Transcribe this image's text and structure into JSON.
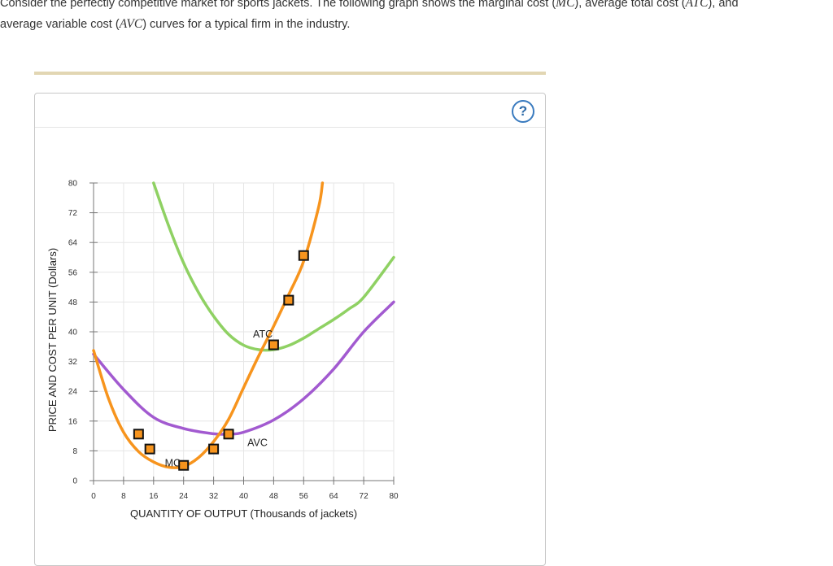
{
  "intro": {
    "line1_a": "Consider the perfectly competitive market for sports jackets. The following graph shows the marginal cost (",
    "mc_abbr": "MC",
    "line1_b": "), average total cost (",
    "atc_abbr": "ATC",
    "line1_c": "), and",
    "line2_a": "average variable cost (",
    "avc_abbr": "AVC",
    "line2_b": ") curves for a typical firm in the industry."
  },
  "help_icon": {
    "glyph": "?",
    "name": "help-icon"
  },
  "colors": {
    "mc": "#f7941d",
    "atc": "#8fd163",
    "avc": "#a25ad0",
    "marker_fill": "#f7941d",
    "marker_stroke": "#111111",
    "grid": "#e6e6e6",
    "divider": "#e2d6b3"
  },
  "chart_data": {
    "type": "line",
    "xlabel": "QUANTITY OF OUTPUT (Thousands of jackets)",
    "ylabel": "PRICE AND COST PER UNIT (Dollars)",
    "xlim": [
      0,
      80
    ],
    "ylim": [
      0,
      80
    ],
    "x_ticks": [
      0,
      8,
      16,
      24,
      32,
      40,
      48,
      56,
      64,
      72,
      80
    ],
    "y_ticks": [
      0,
      8,
      16,
      24,
      32,
      40,
      48,
      56,
      64,
      72,
      80
    ],
    "grid": true,
    "series": [
      {
        "name": "MC",
        "color": "#f7941d",
        "x": [
          0,
          4,
          8,
          12,
          16,
          20,
          24,
          28,
          32,
          36,
          40,
          44,
          48,
          52,
          56,
          60,
          61
        ],
        "y": [
          35,
          22,
          13,
          7.8,
          5,
          3.6,
          3.8,
          6.2,
          10.5,
          16.5,
          25,
          33.5,
          41.5,
          50,
          59,
          73.6,
          80
        ]
      },
      {
        "name": "AVC",
        "color": "#a25ad0",
        "x": [
          0,
          8,
          16,
          24,
          32,
          36,
          40,
          48,
          56,
          64,
          72,
          80
        ],
        "y": [
          34,
          24.5,
          17,
          14,
          12.6,
          12.5,
          13,
          16.3,
          22,
          30,
          40,
          48
        ]
      },
      {
        "name": "ATC",
        "color": "#8fd163",
        "x": [
          16,
          20,
          24,
          28,
          32,
          36,
          40,
          44,
          48,
          52,
          56,
          60,
          64,
          68,
          72,
          80
        ],
        "y": [
          80,
          68.5,
          58.5,
          50.5,
          44.2,
          39.3,
          36.4,
          35.2,
          35.2,
          36.3,
          38.3,
          40.8,
          43.3,
          46.1,
          49.3,
          60
        ]
      }
    ],
    "markers": {
      "series": "MC",
      "points": [
        {
          "x": 12,
          "y": 12.5
        },
        {
          "x": 15,
          "y": 8.5
        },
        {
          "x": 24,
          "y": 4.1
        },
        {
          "x": 32,
          "y": 8.5
        },
        {
          "x": 36,
          "y": 12.5
        },
        {
          "x": 48,
          "y": 36.5
        },
        {
          "x": 52,
          "y": 48.5
        },
        {
          "x": 56,
          "y": 60.5
        }
      ]
    },
    "curve_labels": [
      {
        "text": "MC",
        "x": 19,
        "y": 3.8
      },
      {
        "text": "AVC",
        "x": 41,
        "y": 9.3
      },
      {
        "text": "ATC",
        "x": 42.5,
        "y": 38.5
      }
    ]
  }
}
